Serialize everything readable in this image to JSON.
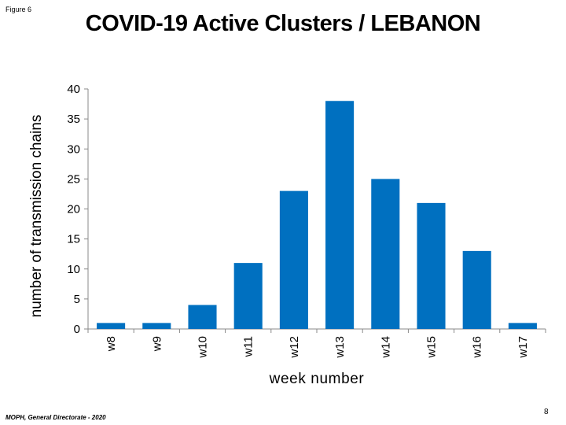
{
  "figure_label": "Figure 6",
  "footer": "MOPH, General Directorate - 2020",
  "page_number": "8",
  "chart_data": {
    "type": "bar",
    "title": "COVID-19 Active Clusters / LEBANON",
    "xlabel": "week number",
    "ylabel": "number of transmission  chains",
    "categories": [
      "w8",
      "w9",
      "w10",
      "w11",
      "w12",
      "w13",
      "w14",
      "w15",
      "w16",
      "w17"
    ],
    "values": [
      1,
      1,
      4,
      11,
      23,
      38,
      25,
      21,
      13,
      1
    ],
    "ylim": [
      0,
      40
    ],
    "yticks": [
      0,
      5,
      10,
      15,
      20,
      25,
      30,
      35,
      40
    ],
    "bar_color": "#0070C0",
    "grid": false,
    "legend": "none"
  }
}
